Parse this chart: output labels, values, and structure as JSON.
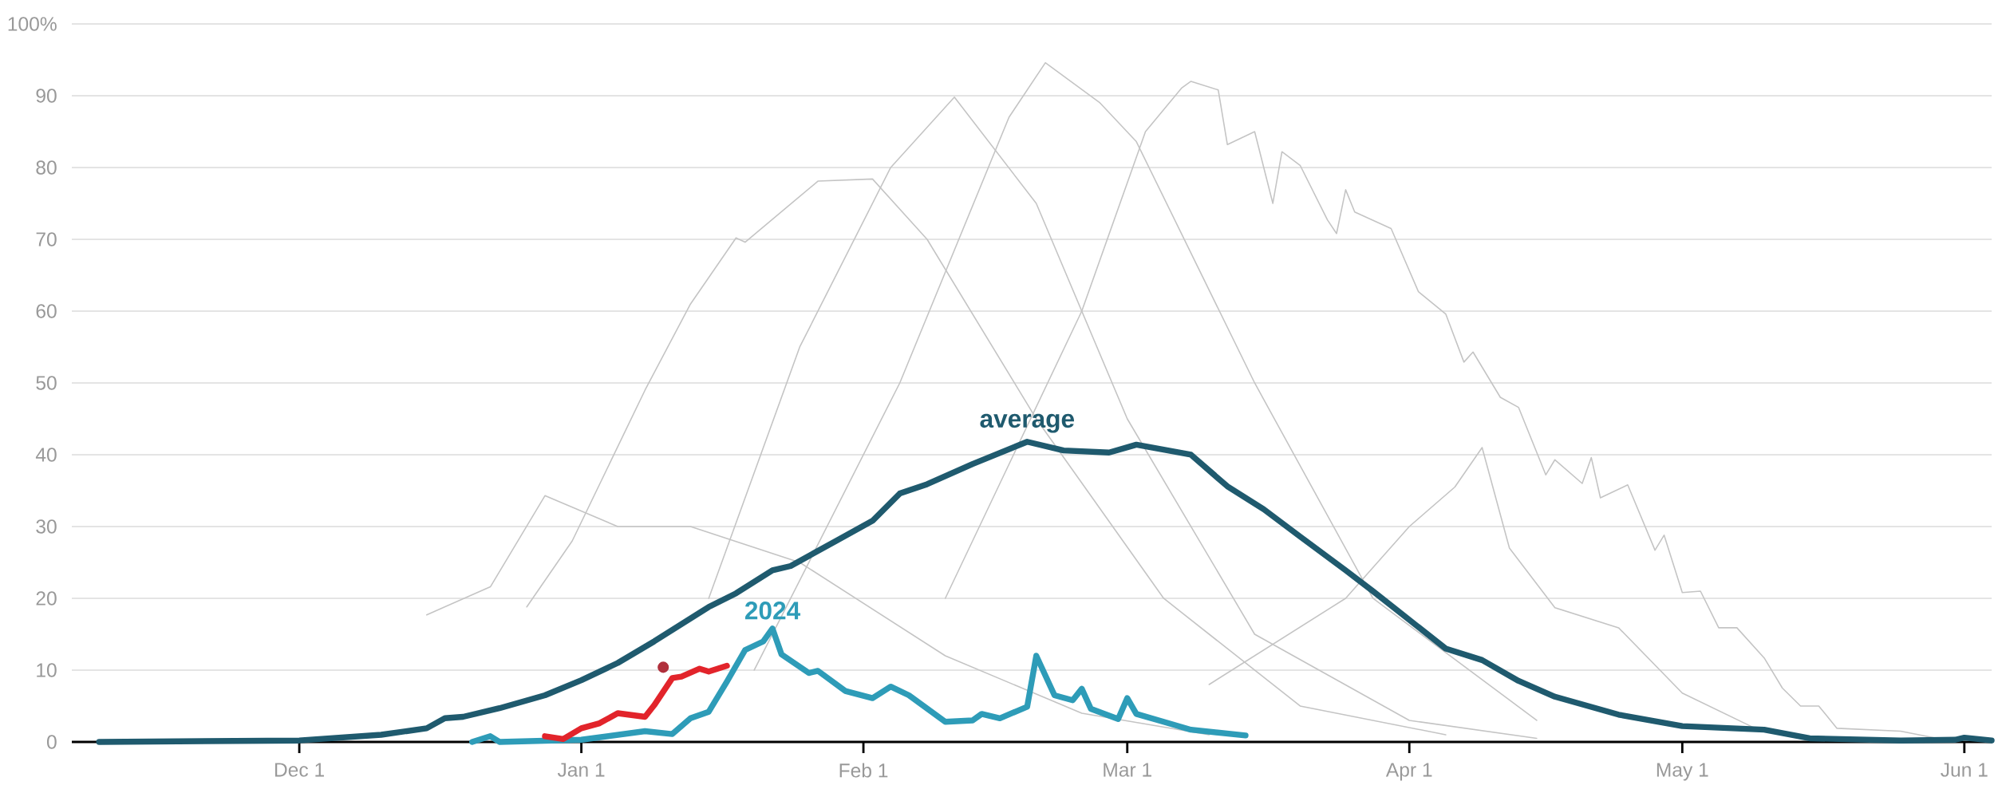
{
  "chart_data": {
    "type": "line",
    "xlim": [
      "2023-11-06",
      "2024-06-04"
    ],
    "ylim": [
      0,
      100
    ],
    "xticks": [
      {
        "value": "2023-12-01",
        "label": "Dec 1"
      },
      {
        "value": "2024-01-01",
        "label": "Jan 1"
      },
      {
        "value": "2024-02-01",
        "label": "Feb 1"
      },
      {
        "value": "2024-03-01",
        "label": "Mar 1"
      },
      {
        "value": "2024-04-01",
        "label": "Apr 1"
      },
      {
        "value": "2024-05-01",
        "label": "May 1"
      },
      {
        "value": "2024-06-01",
        "label": "Jun 1"
      }
    ],
    "yticks": [
      0,
      10,
      20,
      30,
      40,
      50,
      60,
      70,
      80,
      90,
      {
        "value": 100,
        "label": "100%"
      }
    ],
    "grid": "y",
    "series": [
      {
        "color": "#c4c4c4",
        "x": [
          "2024-02-10",
          "2024-02-25",
          "2024-03-03",
          "2024-03-07",
          "2024-03-08",
          "2024-03-11",
          "2024-03-12",
          "2024-03-15",
          "2024-03-17",
          "2024-03-18",
          "2024-03-20",
          "2024-03-23",
          "2024-03-24",
          "2024-03-25",
          "2024-03-26",
          "2024-03-30",
          "2024-04-02",
          "2024-04-05",
          "2024-04-07",
          "2024-04-08",
          "2024-04-11",
          "2024-04-13",
          "2024-04-16",
          "2024-04-17",
          "2024-04-20",
          "2024-04-21",
          "2024-04-22",
          "2024-04-25",
          "2024-04-28",
          "2024-04-29",
          "2024-05-01",
          "2024-05-03",
          "2024-05-05",
          "2024-05-07",
          "2024-05-10",
          "2024-05-12",
          "2024-05-14",
          "2024-05-16",
          "2024-05-18",
          "2024-05-25",
          "2024-05-29"
        ],
        "values": [
          20,
          60,
          85,
          91.1,
          92,
          90.8,
          83.2,
          85,
          75,
          82.2,
          80.3,
          72.7,
          70.8,
          76.9,
          73.8,
          71.5,
          62.7,
          59.6,
          52.9,
          54.3,
          48,
          46.6,
          37.2,
          39.3,
          36,
          39.6,
          34,
          35.8,
          26.7,
          28.8,
          20.8,
          21,
          15.9,
          15.9,
          11.7,
          7.5,
          5,
          5,
          1.9,
          1.5,
          0.5
        ]
      },
      {
        "color": "#c4c4c4",
        "x": [
          "2024-01-20",
          "2024-02-05",
          "2024-02-17",
          "2024-02-21",
          "2024-02-27",
          "2024-03-02",
          "2024-03-15",
          "2024-03-28",
          "2024-04-15"
        ],
        "values": [
          10,
          50,
          87,
          94.6,
          89,
          83.6,
          50,
          20,
          3
        ]
      },
      {
        "color": "#c4c4c4",
        "x": [
          "2023-12-26",
          "2023-12-31",
          "2024-01-08",
          "2024-01-13",
          "2024-01-18",
          "2024-01-19",
          "2024-01-27",
          "2024-02-02",
          "2024-02-08",
          "2024-02-20",
          "2024-03-05",
          "2024-03-20",
          "2024-04-05"
        ],
        "values": [
          18.8,
          28,
          49,
          61,
          70.2,
          69.6,
          78.1,
          78.4,
          70,
          45,
          20,
          5,
          1
        ]
      },
      {
        "color": "#c4c4c4",
        "x": [
          "2023-12-15",
          "2023-12-22",
          "2023-12-28",
          "2024-01-05",
          "2024-01-13",
          "2024-01-25",
          "2024-02-10",
          "2024-02-25",
          "2024-03-10"
        ],
        "values": [
          17.7,
          21.6,
          34.3,
          30,
          30,
          25,
          12,
          4,
          1
        ]
      },
      {
        "color": "#c4c4c4",
        "x": [
          "2024-03-10",
          "2024-03-25",
          "2024-04-01",
          "2024-04-06",
          "2024-04-09",
          "2024-04-12",
          "2024-04-17",
          "2024-04-24",
          "2024-05-01",
          "2024-05-09"
        ],
        "values": [
          8,
          20,
          30,
          35.5,
          41,
          27,
          18.7,
          15.9,
          6.8,
          1.9
        ]
      },
      {
        "color": "#c4c4c4",
        "x": [
          "2024-01-15",
          "2024-01-25",
          "2024-02-04",
          "2024-02-11",
          "2024-02-20",
          "2024-03-01",
          "2024-03-15",
          "2024-04-01",
          "2024-04-15"
        ],
        "values": [
          20,
          55,
          80,
          89.8,
          75,
          45,
          15,
          3,
          0.5
        ]
      },
      {
        "name": "average",
        "color": "#1f5a6e",
        "x": [
          "2023-11-09",
          "2023-11-20",
          "2023-12-01",
          "2023-12-10",
          "2023-12-15",
          "2023-12-17",
          "2023-12-19",
          "2023-12-23",
          "2023-12-28",
          "2024-01-01",
          "2024-01-05",
          "2024-01-09",
          "2024-01-11",
          "2024-01-15",
          "2024-01-18",
          "2024-01-22",
          "2024-01-24",
          "2024-01-29",
          "2024-02-02",
          "2024-02-05",
          "2024-02-08",
          "2024-02-13",
          "2024-02-19",
          "2024-02-23",
          "2024-02-28",
          "2024-03-02",
          "2024-03-08",
          "2024-03-12",
          "2024-03-16",
          "2024-03-20",
          "2024-03-25",
          "2024-03-28",
          "2024-04-05",
          "2024-04-09",
          "2024-04-13",
          "2024-04-17",
          "2024-04-24",
          "2024-05-01",
          "2024-05-10",
          "2024-05-15",
          "2024-05-25",
          "2024-05-31",
          "2024-06-01",
          "2024-06-04"
        ],
        "values": [
          0,
          0.1,
          0.2,
          1.0,
          1.9,
          3.3,
          3.5,
          4.7,
          6.5,
          8.6,
          11,
          14,
          15.6,
          18.8,
          20.7,
          23.9,
          24.5,
          28,
          30.8,
          34.6,
          35.9,
          38.7,
          41.8,
          40.6,
          40.3,
          41.4,
          40,
          35.6,
          32.4,
          28.6,
          23.9,
          21,
          13,
          11.4,
          8.5,
          6.3,
          3.8,
          2.2,
          1.7,
          0.5,
          0.2,
          0.3,
          0.6,
          0.2
        ]
      },
      {
        "name": "2024",
        "color": "#2e9cb8",
        "x": [
          "2023-12-20",
          "2023-12-22",
          "2023-12-23",
          "2024-01-01",
          "2024-01-08",
          "2024-01-11",
          "2024-01-13",
          "2024-01-15",
          "2024-01-17",
          "2024-01-19",
          "2024-01-21",
          "2024-01-22",
          "2024-01-23",
          "2024-01-26",
          "2024-01-27",
          "2024-01-30",
          "2024-02-02",
          "2024-02-04",
          "2024-02-06",
          "2024-02-10",
          "2024-02-13",
          "2024-02-14",
          "2024-02-16",
          "2024-02-19",
          "2024-02-20",
          "2024-02-22",
          "2024-02-24",
          "2024-02-25",
          "2024-02-26",
          "2024-02-29",
          "2024-03-01",
          "2024-03-02",
          "2024-03-05",
          "2024-03-08",
          "2024-03-14"
        ],
        "values": [
          0,
          0.8,
          0,
          0.3,
          1.5,
          1.1,
          3.3,
          4.2,
          8.4,
          12.8,
          14,
          15.8,
          12.2,
          9.6,
          9.9,
          7.1,
          6.1,
          7.7,
          6.5,
          2.8,
          3,
          3.9,
          3.3,
          4.9,
          12,
          6.5,
          5.8,
          7.4,
          4.6,
          3.2,
          6.1,
          3.9,
          2.8,
          1.7,
          0.9
        ]
      },
      {
        "color": "#e2242b",
        "x": [
          "2023-12-28",
          "2023-12-30",
          "2024-01-01",
          "2024-01-03",
          "2024-01-05",
          "2024-01-08",
          "2024-01-09",
          "2024-01-11",
          "2024-01-12",
          "2024-01-14",
          "2024-01-15",
          "2024-01-17"
        ],
        "values": [
          0.8,
          0.4,
          1.9,
          2.6,
          4,
          3.5,
          5.1,
          8.9,
          9.1,
          10.2,
          9.8,
          10.6
        ]
      },
      {
        "type": "scatter",
        "color": "#b0303c",
        "x": [
          "2024-01-10"
        ],
        "values": [
          10.4
        ]
      }
    ]
  }
}
